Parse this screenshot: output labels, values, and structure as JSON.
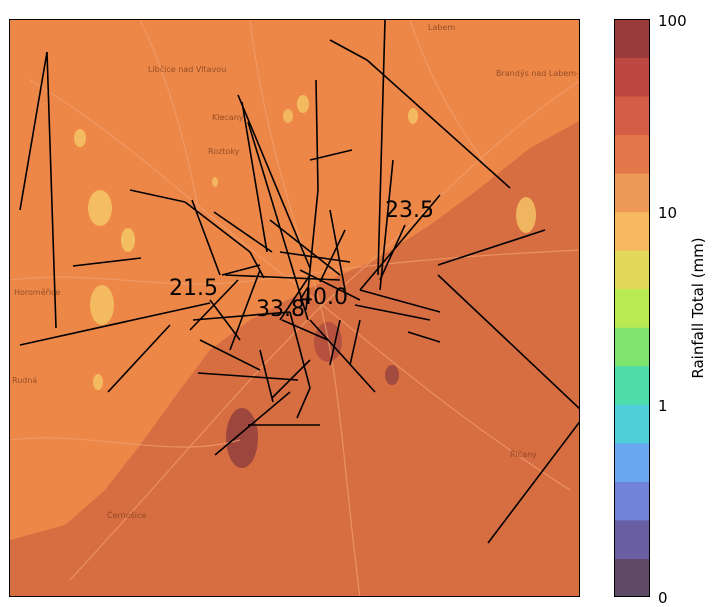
{
  "map": {
    "base_color": "#ec8748",
    "heavy_zone_color": "#d46a42",
    "place_names": [
      "Libčice nad Vltavou",
      "Klecany",
      "Roztoky",
      "Brandýs nad Labem-Stará Boleslav",
      "Labem",
      "Horoměřice",
      "Rudná",
      "Černošice",
      "Říčany"
    ],
    "station_labels": [
      {
        "id": "s1",
        "text": "21.5"
      },
      {
        "id": "s2",
        "text": "33.8"
      },
      {
        "id": "s3",
        "text": "40.0"
      },
      {
        "id": "s4",
        "text": "23.5"
      }
    ]
  },
  "colorbar": {
    "axis_label": "Rainfall Total (mm)",
    "scale": "log",
    "ticks": [
      "100",
      "10",
      "1",
      "0"
    ],
    "colors_bottom_to_top": [
      "#5e4a66",
      "#6a5fa3",
      "#7183d6",
      "#6aa7f0",
      "#4fcfd8",
      "#4fdcab",
      "#80e56e",
      "#b9ea52",
      "#e2d95a",
      "#f6b860",
      "#ee9a56",
      "#e3774a",
      "#d45d45",
      "#bd4841",
      "#9b3a3a"
    ]
  }
}
